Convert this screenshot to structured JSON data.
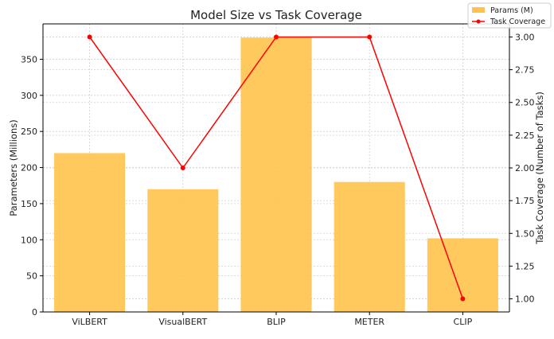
{
  "chart_data": {
    "type": "bar",
    "title": "Model Size vs Task Coverage",
    "categories": [
      "ViLBERT",
      "VisualBERT",
      "BLIP",
      "METER",
      "CLIP"
    ],
    "series": [
      {
        "name": "Params (M)",
        "kind": "bar",
        "axis": "left",
        "values": [
          220,
          170,
          380,
          180,
          102
        ],
        "color": "#ffc34d"
      },
      {
        "name": "Task Coverage",
        "kind": "line",
        "axis": "right",
        "values": [
          3,
          2,
          3,
          3,
          1
        ],
        "color": "#ff0000"
      }
    ],
    "ylabel": "Parameters (Millions)",
    "y2label": "Task Coverage (Number of Tasks)",
    "ylim": [
      0,
      399
    ],
    "y2lim": [
      0.9,
      3.1
    ],
    "yticks": [
      "0",
      "50",
      "100",
      "150",
      "200",
      "250",
      "300",
      "350"
    ],
    "y2ticks": [
      "1.00",
      "1.25",
      "1.50",
      "1.75",
      "2.00",
      "2.25",
      "2.50",
      "2.75",
      "3.00"
    ],
    "grid": true,
    "legend_position": "top-right"
  }
}
